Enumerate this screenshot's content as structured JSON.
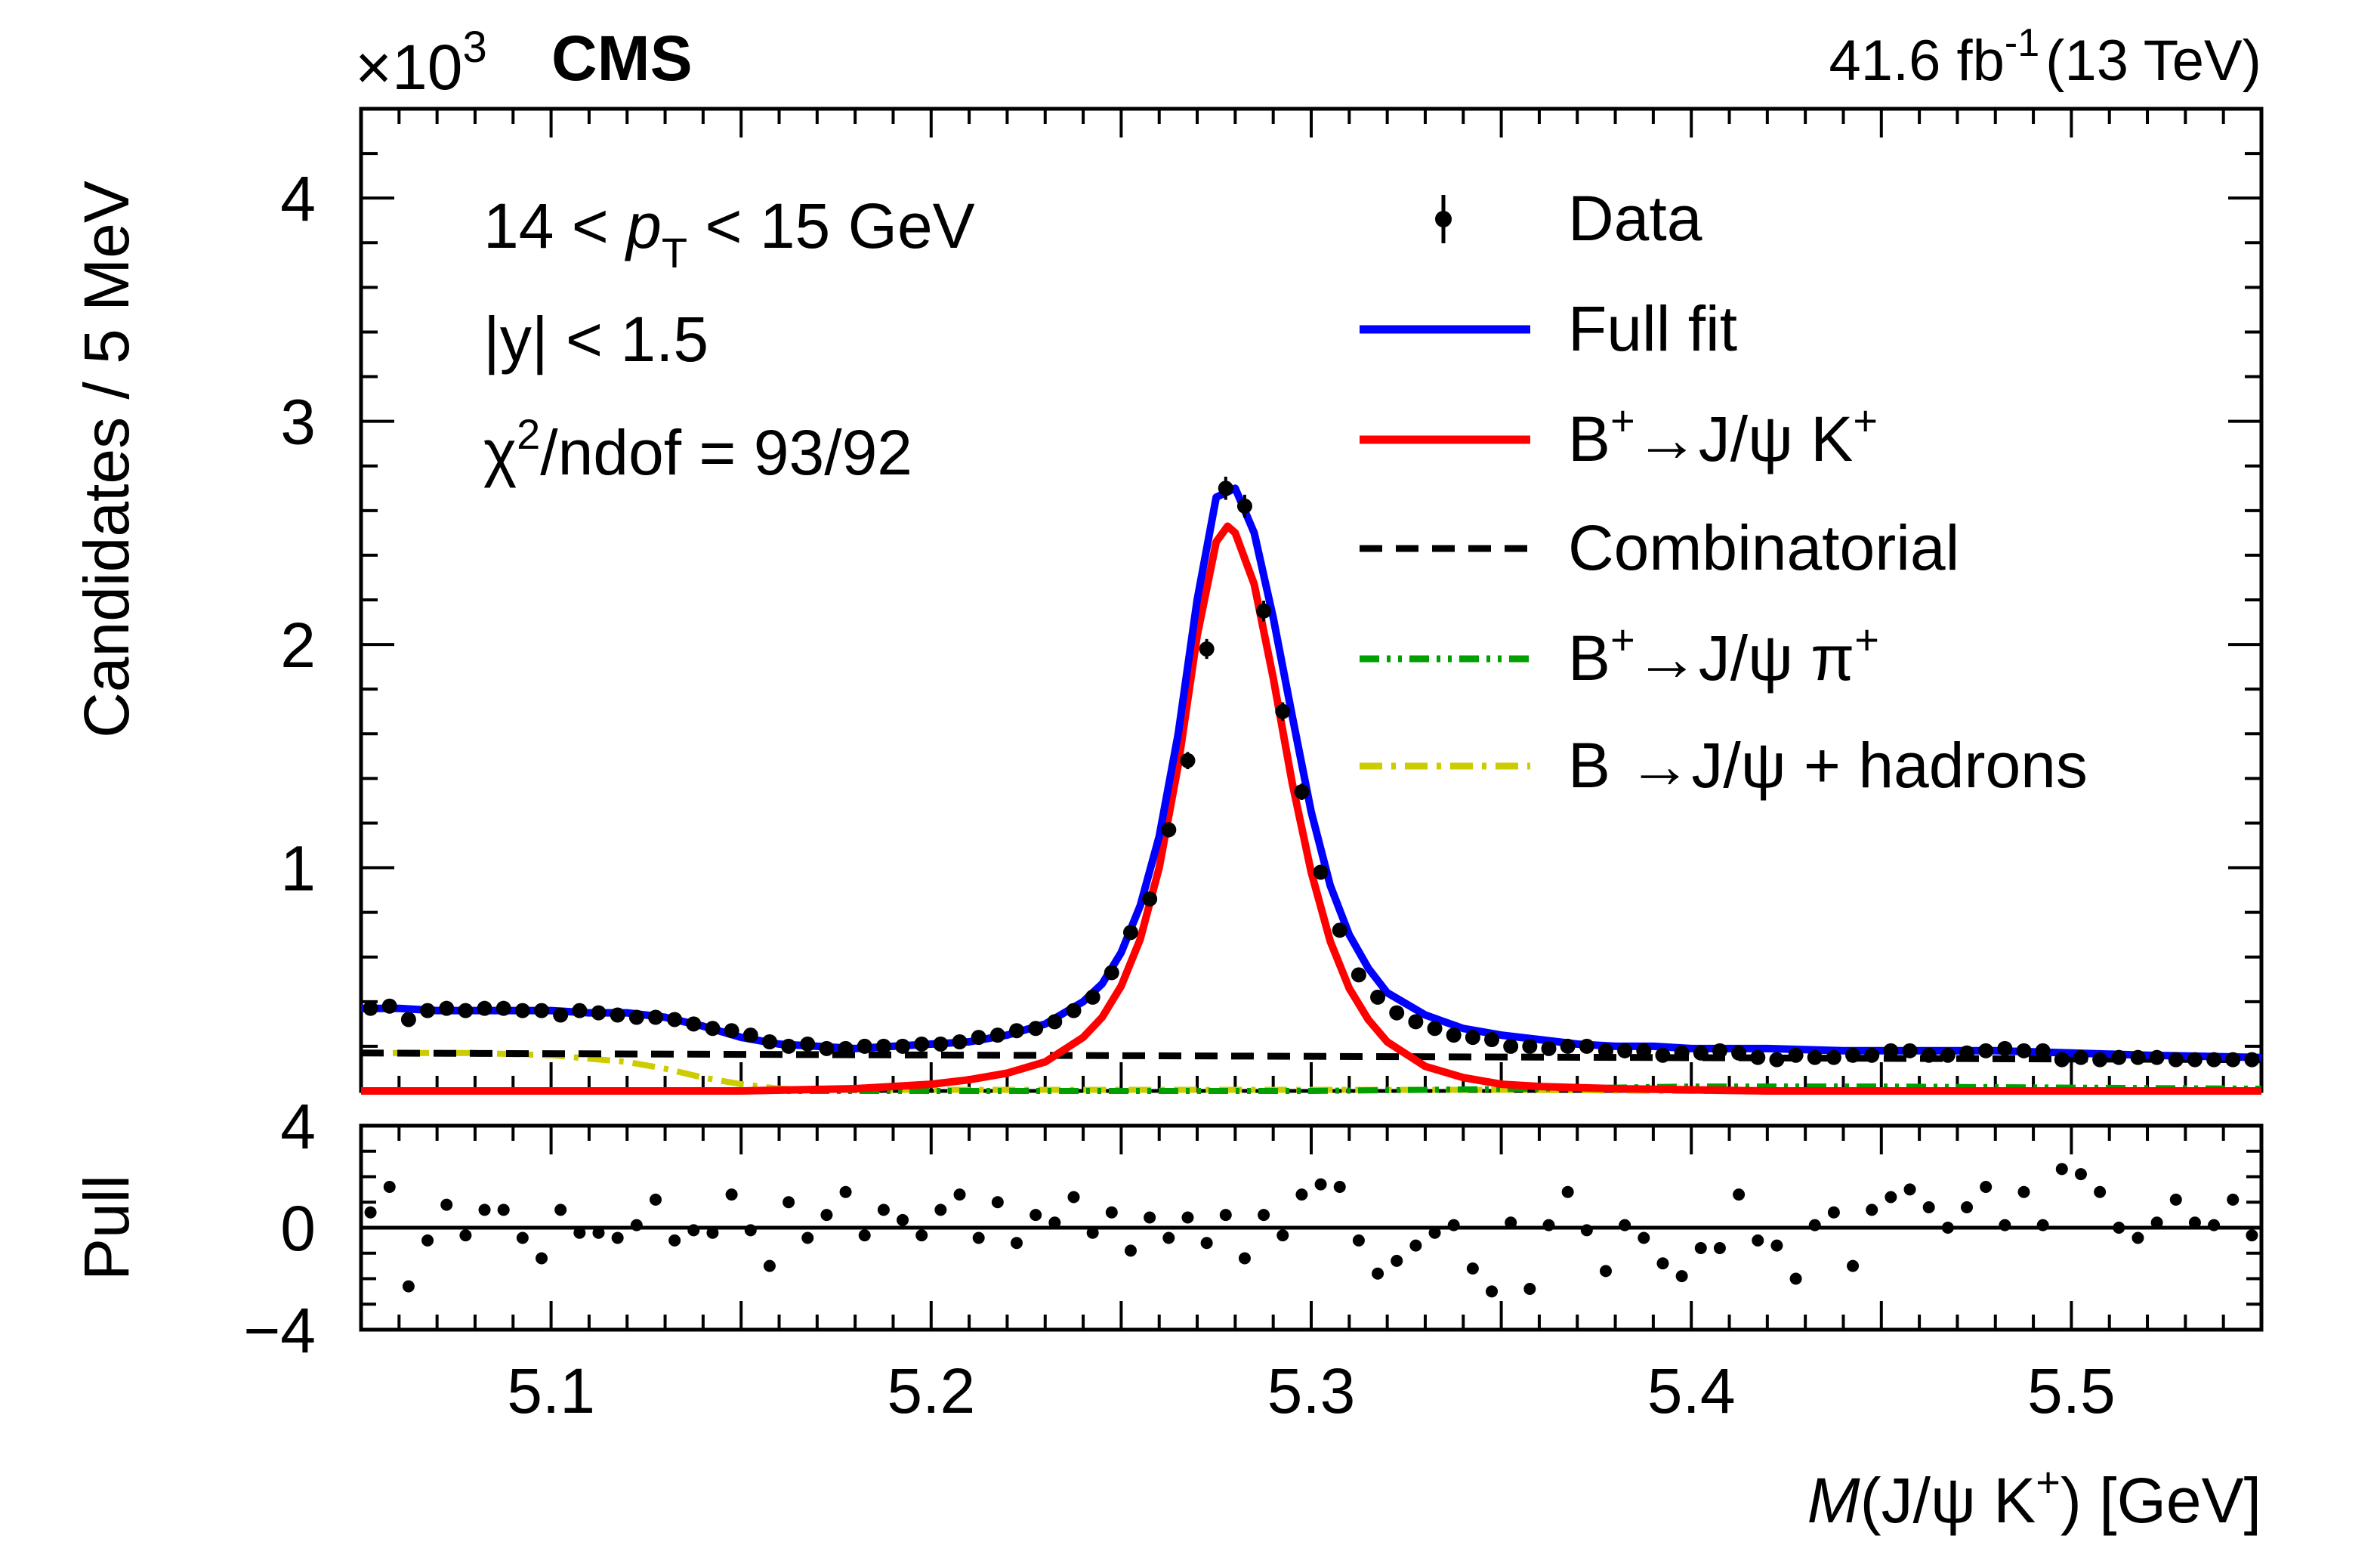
{
  "header": {
    "multiplier": "×10",
    "multiplier_exp": "3",
    "experiment": "CMS",
    "lumi": "41.6 fb",
    "lumi_exp": "-1",
    "energy": "(13 TeV)"
  },
  "annotations": {
    "pt_lo": "14 < ",
    "pt_sym": "p",
    "pt_sub": "T",
    "pt_hi": " < 15 GeV",
    "rapidity": "|y| < 1.5",
    "chi2_sym": "χ",
    "chi2_exp": "2",
    "chi2_rest": "/ndof = 93/92"
  },
  "legend": {
    "data": "Data",
    "full_fit": "Full fit",
    "signal_pre": "B",
    "signal_sup": "+",
    "signal_post": "→J/ψ K",
    "signal_sup2": "+",
    "combinatorial": "Combinatorial",
    "pion_pre": "B",
    "pion_sup": "+",
    "pion_post": "→J/ψ π",
    "pion_sup2": "+",
    "hadrons": "B →J/ψ + hadrons"
  },
  "colors": {
    "full_fit": "#0000ff",
    "signal": "#ff0000",
    "combinatorial": "#000000",
    "pion": "#00a000",
    "hadrons": "#cccc00",
    "data": "#000000"
  },
  "chart_data": [
    {
      "type": "scatter",
      "title": "",
      "xlabel_pre": "M",
      "xlabel_mid": "(J/ψ K",
      "xlabel_sup": "+",
      "xlabel_post": ") [GeV]",
      "ylabel": "Candidates / 5 MeV",
      "xlim": [
        5.05,
        5.55
      ],
      "ylim": [
        0,
        4.4
      ],
      "x_ticks": [
        5.1,
        5.2,
        5.3,
        5.4,
        5.5
      ],
      "x_tick_labels": [
        "5.1",
        "5.2",
        "5.3",
        "5.4",
        "5.5"
      ],
      "y_ticks": [
        1,
        2,
        3,
        4
      ],
      "y_tick_labels": [
        "1",
        "2",
        "3",
        "4"
      ],
      "y_unit": "×10^3",
      "series": [
        {
          "name": "Data",
          "x": [
            5.0525,
            5.0575,
            5.0625,
            5.0675,
            5.0725,
            5.0775,
            5.0825,
            5.0875,
            5.0925,
            5.0975,
            5.1025,
            5.1075,
            5.1125,
            5.1175,
            5.1225,
            5.1275,
            5.1325,
            5.1375,
            5.1425,
            5.1475,
            5.1525,
            5.1575,
            5.1625,
            5.1675,
            5.1725,
            5.1775,
            5.1825,
            5.1875,
            5.1925,
            5.1975,
            5.2025,
            5.2075,
            5.2125,
            5.2175,
            5.2225,
            5.2275,
            5.2325,
            5.2375,
            5.2425,
            5.2475,
            5.2525,
            5.2575,
            5.2625,
            5.2675,
            5.2725,
            5.2775,
            5.2825,
            5.2875,
            5.2925,
            5.2975,
            5.3025,
            5.3075,
            5.3125,
            5.3175,
            5.3225,
            5.3275,
            5.3325,
            5.3375,
            5.3425,
            5.3475,
            5.3525,
            5.3575,
            5.3625,
            5.3675,
            5.3725,
            5.3775,
            5.3825,
            5.3875,
            5.3925,
            5.3975,
            5.4025,
            5.4075,
            5.4125,
            5.4175,
            5.4225,
            5.4275,
            5.4325,
            5.4375,
            5.4425,
            5.4475,
            5.4525,
            5.4575,
            5.4625,
            5.4675,
            5.4725,
            5.4775,
            5.4825,
            5.4875,
            5.4925,
            5.4975,
            5.5025,
            5.5075,
            5.5125,
            5.5175,
            5.5225,
            5.5275,
            5.5325,
            5.5375,
            5.5425,
            5.5475
          ],
          "y": [
            0.37,
            0.38,
            0.32,
            0.36,
            0.37,
            0.36,
            0.37,
            0.37,
            0.36,
            0.36,
            0.34,
            0.36,
            0.35,
            0.34,
            0.33,
            0.33,
            0.32,
            0.3,
            0.28,
            0.27,
            0.25,
            0.22,
            0.2,
            0.21,
            0.19,
            0.19,
            0.2,
            0.2,
            0.2,
            0.21,
            0.21,
            0.22,
            0.24,
            0.25,
            0.27,
            0.28,
            0.31,
            0.36,
            0.42,
            0.53,
            0.71,
            0.86,
            1.17,
            1.48,
            1.98,
            2.7,
            2.62,
            2.15,
            1.7,
            1.34,
            0.98,
            0.72,
            0.52,
            0.42,
            0.35,
            0.31,
            0.28,
            0.25,
            0.24,
            0.23,
            0.2,
            0.2,
            0.19,
            0.2,
            0.2,
            0.18,
            0.18,
            0.18,
            0.16,
            0.17,
            0.17,
            0.18,
            0.17,
            0.15,
            0.14,
            0.16,
            0.15,
            0.15,
            0.16,
            0.16,
            0.18,
            0.18,
            0.16,
            0.16,
            0.17,
            0.18,
            0.19,
            0.18,
            0.18,
            0.14,
            0.15,
            0.14,
            0.15,
            0.15,
            0.15,
            0.14,
            0.14,
            0.14,
            0.14,
            0.14
          ]
        },
        {
          "name": "Full fit",
          "x": [
            5.05,
            5.06,
            5.07,
            5.08,
            5.09,
            5.1,
            5.11,
            5.12,
            5.13,
            5.14,
            5.15,
            5.16,
            5.17,
            5.18,
            5.19,
            5.2,
            5.21,
            5.22,
            5.23,
            5.24,
            5.245,
            5.25,
            5.255,
            5.26,
            5.265,
            5.27,
            5.275,
            5.28,
            5.285,
            5.29,
            5.295,
            5.3,
            5.305,
            5.31,
            5.315,
            5.32,
            5.33,
            5.34,
            5.35,
            5.36,
            5.37,
            5.38,
            5.39,
            5.4,
            5.42,
            5.44,
            5.46,
            5.48,
            5.5,
            5.52,
            5.55
          ],
          "y": [
            0.37,
            0.37,
            0.36,
            0.36,
            0.36,
            0.36,
            0.35,
            0.35,
            0.33,
            0.29,
            0.24,
            0.21,
            0.2,
            0.19,
            0.2,
            0.21,
            0.22,
            0.25,
            0.3,
            0.4,
            0.48,
            0.62,
            0.83,
            1.14,
            1.6,
            2.2,
            2.66,
            2.7,
            2.5,
            2.12,
            1.68,
            1.25,
            0.92,
            0.7,
            0.55,
            0.44,
            0.34,
            0.28,
            0.25,
            0.23,
            0.21,
            0.2,
            0.2,
            0.19,
            0.19,
            0.18,
            0.18,
            0.18,
            0.17,
            0.16,
            0.15
          ]
        },
        {
          "name": "B+→J/ψ K+",
          "x": [
            5.05,
            5.1,
            5.15,
            5.18,
            5.2,
            5.21,
            5.22,
            5.23,
            5.24,
            5.245,
            5.25,
            5.255,
            5.26,
            5.265,
            5.27,
            5.275,
            5.278,
            5.28,
            5.285,
            5.29,
            5.295,
            5.3,
            5.305,
            5.31,
            5.315,
            5.32,
            5.33,
            5.34,
            5.35,
            5.36,
            5.38,
            5.42,
            5.55
          ],
          "y": [
            0,
            0,
            0,
            0.01,
            0.03,
            0.05,
            0.08,
            0.13,
            0.24,
            0.33,
            0.47,
            0.68,
            1.0,
            1.46,
            2.04,
            2.46,
            2.53,
            2.5,
            2.27,
            1.85,
            1.38,
            0.98,
            0.67,
            0.46,
            0.32,
            0.22,
            0.11,
            0.06,
            0.03,
            0.02,
            0.01,
            0,
            0
          ]
        },
        {
          "name": "Combinatorial",
          "x": [
            5.05,
            5.55
          ],
          "y": [
            0.17,
            0.14
          ]
        },
        {
          "name": "B+→J/ψ π+",
          "x": [
            5.05,
            5.3,
            5.33,
            5.36,
            5.4,
            5.45,
            5.5,
            5.55
          ],
          "y": [
            0,
            0,
            0.005,
            0.01,
            0.02,
            0.02,
            0.015,
            0.01
          ]
        },
        {
          "name": "B →J/ψ + hadrons",
          "x": [
            5.05,
            5.08,
            5.1,
            5.12,
            5.13,
            5.14,
            5.15,
            5.16,
            5.17,
            5.2,
            5.25,
            5.3,
            5.35,
            5.4,
            5.55
          ],
          "y": [
            0.17,
            0.17,
            0.16,
            0.13,
            0.1,
            0.06,
            0.03,
            0.01,
            0.005,
            0.005,
            0.005,
            0.005,
            0.005,
            0,
            0
          ]
        }
      ]
    },
    {
      "type": "scatter",
      "ylabel": "Pull",
      "xlim": [
        5.05,
        5.55
      ],
      "ylim": [
        -4,
        4
      ],
      "y_ticks": [
        -4,
        0,
        4
      ],
      "y_tick_labels": [
        "−4",
        "0",
        "4"
      ],
      "series": [
        {
          "name": "Pull",
          "x": [
            5.0525,
            5.0575,
            5.0625,
            5.0675,
            5.0725,
            5.0775,
            5.0825,
            5.0875,
            5.0925,
            5.0975,
            5.1025,
            5.1075,
            5.1125,
            5.1175,
            5.1225,
            5.1275,
            5.1325,
            5.1375,
            5.1425,
            5.1475,
            5.1525,
            5.1575,
            5.1625,
            5.1675,
            5.1725,
            5.1775,
            5.1825,
            5.1875,
            5.1925,
            5.1975,
            5.2025,
            5.2075,
            5.2125,
            5.2175,
            5.2225,
            5.2275,
            5.2325,
            5.2375,
            5.2425,
            5.2475,
            5.2525,
            5.2575,
            5.2625,
            5.2675,
            5.2725,
            5.2775,
            5.2825,
            5.2875,
            5.2925,
            5.2975,
            5.3025,
            5.3075,
            5.3125,
            5.3175,
            5.3225,
            5.3275,
            5.3325,
            5.3375,
            5.3425,
            5.3475,
            5.3525,
            5.3575,
            5.3625,
            5.3675,
            5.3725,
            5.3775,
            5.3825,
            5.3875,
            5.3925,
            5.3975,
            5.4025,
            5.4075,
            5.4125,
            5.4175,
            5.4225,
            5.4275,
            5.4325,
            5.4375,
            5.4425,
            5.4475,
            5.4525,
            5.4575,
            5.4625,
            5.4675,
            5.4725,
            5.4775,
            5.4825,
            5.4875,
            5.4925,
            5.4975,
            5.5025,
            5.5075,
            5.5125,
            5.5175,
            5.5225,
            5.5275,
            5.5325,
            5.5375,
            5.5425,
            5.5475
          ],
          "y": [
            0.6,
            1.6,
            -2.3,
            -0.5,
            0.9,
            -0.3,
            0.7,
            0.7,
            -0.4,
            -1.2,
            0.7,
            -0.2,
            -0.2,
            -0.4,
            0.1,
            1.1,
            -0.5,
            -0.1,
            -0.2,
            1.3,
            -0.1,
            -1.5,
            1.0,
            -0.4,
            0.5,
            1.4,
            -0.3,
            0.7,
            0.3,
            -0.3,
            0.7,
            1.3,
            -0.4,
            1.0,
            -0.6,
            0.5,
            0.2,
            1.2,
            -0.2,
            0.6,
            -0.9,
            0.4,
            -0.4,
            0.4,
            -0.6,
            0.5,
            -1.2,
            0.5,
            -0.3,
            1.3,
            1.7,
            1.6,
            -0.5,
            -1.8,
            -1.3,
            -0.7,
            -0.2,
            0.1,
            -1.6,
            -2.5,
            0.2,
            -2.4,
            0.1,
            1.4,
            -0.1,
            -1.7,
            0.1,
            -0.4,
            -1.4,
            -1.9,
            -0.8,
            -0.8,
            1.3,
            -0.5,
            -0.7,
            -2.0,
            0.1,
            0.6,
            -1.5,
            0.7,
            1.2,
            1.5,
            0.8,
            0.0,
            0.8,
            1.6,
            0.1,
            1.4,
            0.1,
            2.3,
            2.1,
            1.4,
            0.0,
            -0.4,
            0.2,
            1.1,
            0.2,
            0.1,
            1.1,
            -0.3
          ]
        }
      ]
    }
  ]
}
